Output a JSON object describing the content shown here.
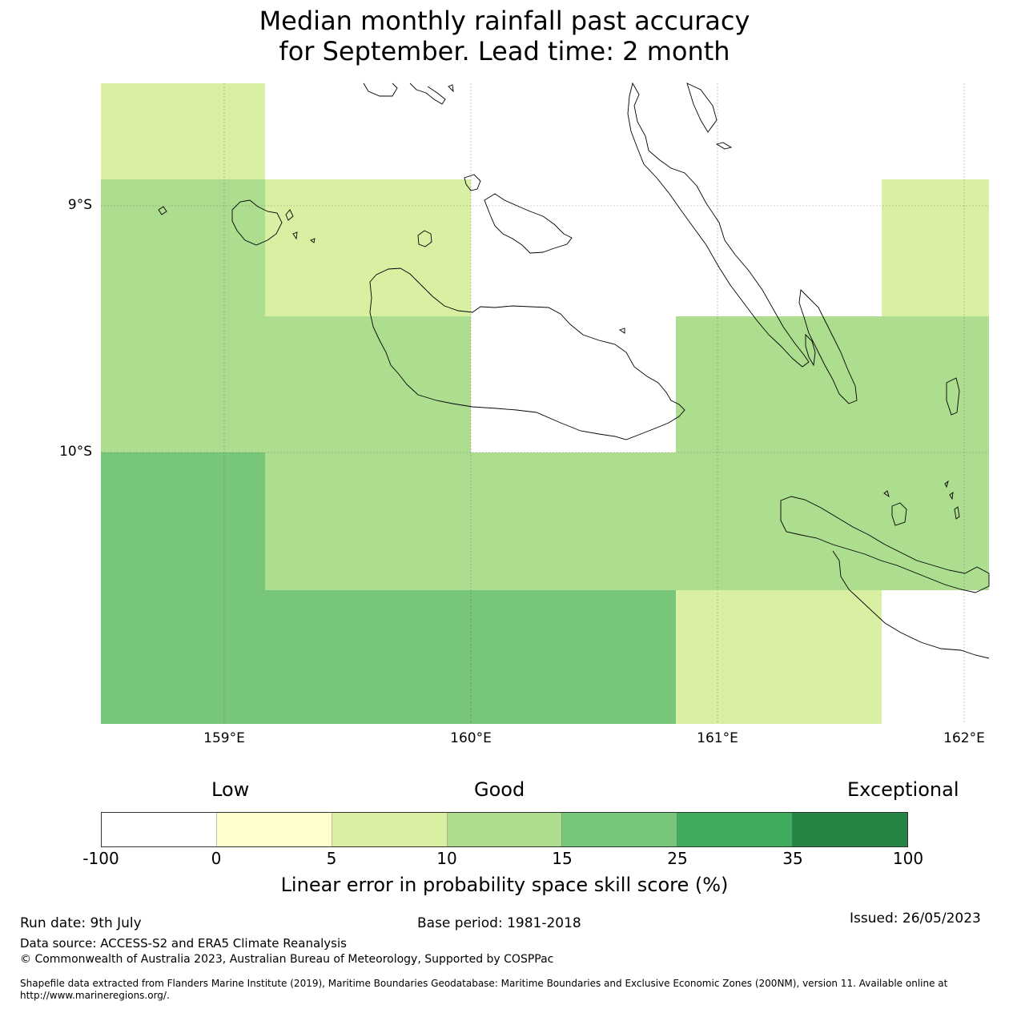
{
  "title": {
    "line1": "Median monthly rainfall past accuracy",
    "line2": "for September. Lead time: 2 month"
  },
  "map": {
    "lat_labels": [
      "9°S",
      "10°S"
    ],
    "lon_labels": [
      "159°E",
      "160°E",
      "161°E",
      "162°E"
    ],
    "cells": [
      {
        "row": 0,
        "col": 0,
        "skill_bin": "5-10"
      },
      {
        "row": 0,
        "col": 1,
        "skill_bin": "-100-0"
      },
      {
        "row": 0,
        "col": 2,
        "skill_bin": "-100-0"
      },
      {
        "row": 0,
        "col": 3,
        "skill_bin": "-100-0"
      },
      {
        "row": 0,
        "col": 4,
        "skill_bin": "-100-0"
      },
      {
        "row": 1,
        "col": 0,
        "skill_bin": "10-15"
      },
      {
        "row": 1,
        "col": 1,
        "skill_bin": "5-10"
      },
      {
        "row": 1,
        "col": 2,
        "skill_bin": "-100-0"
      },
      {
        "row": 1,
        "col": 3,
        "skill_bin": "-100-0"
      },
      {
        "row": 1,
        "col": 4,
        "skill_bin": "5-10"
      },
      {
        "row": 2,
        "col": 0,
        "skill_bin": "10-15"
      },
      {
        "row": 2,
        "col": 1,
        "skill_bin": "10-15"
      },
      {
        "row": 2,
        "col": 2,
        "skill_bin": "-100-0"
      },
      {
        "row": 2,
        "col": 3,
        "skill_bin": "10-15"
      },
      {
        "row": 2,
        "col": 4,
        "skill_bin": "10-15"
      },
      {
        "row": 3,
        "col": 0,
        "skill_bin": "15-25"
      },
      {
        "row": 3,
        "col": 1,
        "skill_bin": "10-15"
      },
      {
        "row": 3,
        "col": 2,
        "skill_bin": "10-15"
      },
      {
        "row": 3,
        "col": 3,
        "skill_bin": "10-15"
      },
      {
        "row": 3,
        "col": 4,
        "skill_bin": "10-15"
      },
      {
        "row": 4,
        "col": 0,
        "skill_bin": "15-25"
      },
      {
        "row": 4,
        "col": 1,
        "skill_bin": "15-25"
      },
      {
        "row": 4,
        "col": 2,
        "skill_bin": "15-25"
      },
      {
        "row": 4,
        "col": 3,
        "skill_bin": "5-10"
      },
      {
        "row": 4,
        "col": 4,
        "skill_bin": "-100-0"
      }
    ],
    "bin_colors": {
      "-100-0": "#ffffff",
      "0-5": "#ffffcc",
      "5-10": "#d9f0a3",
      "10-15": "#addd8e",
      "15-25": "#78c679",
      "25-35": "#41ab5d",
      "35-100": "#238443"
    }
  },
  "legend": {
    "categories": [
      "Low",
      "Good",
      "Exceptional"
    ],
    "colors": [
      "#ffffff",
      "#ffffcc",
      "#d9f0a3",
      "#addd8e",
      "#78c679",
      "#41ab5d",
      "#238443"
    ],
    "ticks": [
      "-100",
      "0",
      "5",
      "10",
      "15",
      "25",
      "35",
      "100"
    ],
    "label": "Linear error in probability space skill score (%)"
  },
  "footer": {
    "run_date": "Run date: 9th July",
    "base_period": "Base period: 1981-2018",
    "issued": "Issued: 26/05/2023",
    "data_source": "Data source: ACCESS-S2 and ERA5 Climate Reanalysis",
    "copyright": "© Commonwealth of Australia 2023, Australian Bureau of Meteorology, Supported by COSPPac",
    "shapefile_line1": "Shapefile data extracted from Flanders Marine Institute (2019), Maritime Boundaries Geodatabase: Maritime Boundaries and Exclusive Economic Zones (200NM), version 11. Available online at",
    "shapefile_line2": "http://www.marineregions.org/."
  }
}
